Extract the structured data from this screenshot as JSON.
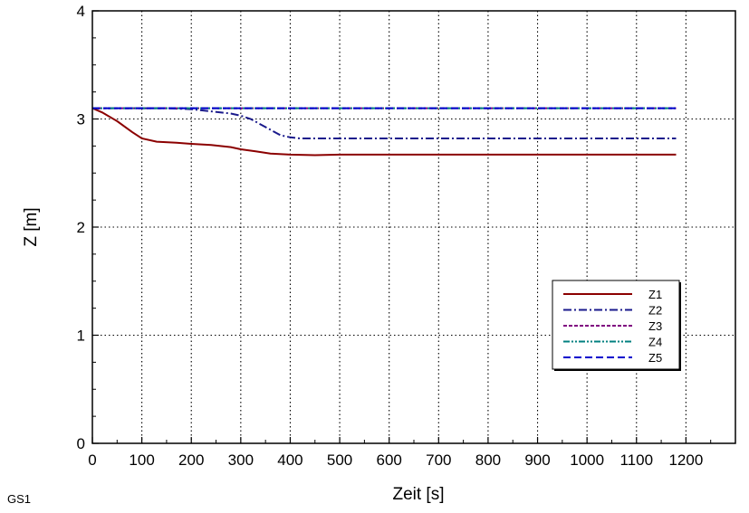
{
  "chart_data": {
    "type": "line",
    "title": "",
    "xlabel": "Zeit [s]",
    "ylabel": "Z [m]",
    "xlim": [
      0,
      1300
    ],
    "ylim": [
      0,
      4
    ],
    "xticks": [
      0,
      100,
      200,
      300,
      400,
      500,
      600,
      700,
      800,
      900,
      1000,
      1100,
      1200
    ],
    "yticks": [
      0,
      1,
      2,
      3,
      4
    ],
    "grid": true,
    "legend_position": "lower-right",
    "corner_label": "GS1",
    "series": [
      {
        "name": "Z1",
        "color": "#8b0000",
        "dash": "solid",
        "x": [
          0,
          20,
          50,
          80,
          100,
          130,
          170,
          200,
          240,
          280,
          300,
          330,
          360,
          400,
          450,
          500,
          600,
          800,
          1000,
          1180
        ],
        "y": [
          3.1,
          3.06,
          2.98,
          2.88,
          2.82,
          2.79,
          2.78,
          2.77,
          2.76,
          2.74,
          2.72,
          2.7,
          2.68,
          2.67,
          2.665,
          2.67,
          2.67,
          2.67,
          2.67,
          2.67
        ]
      },
      {
        "name": "Z2",
        "color": "#1a1a8c",
        "dash": "dashdot",
        "x": [
          0,
          100,
          150,
          200,
          240,
          280,
          300,
          320,
          340,
          360,
          380,
          400,
          420,
          500,
          600,
          800,
          1000,
          1180
        ],
        "y": [
          3.1,
          3.1,
          3.1,
          3.09,
          3.07,
          3.05,
          3.03,
          3.0,
          2.95,
          2.9,
          2.85,
          2.83,
          2.82,
          2.82,
          2.82,
          2.82,
          2.82,
          2.82
        ]
      },
      {
        "name": "Z3",
        "color": "#800080",
        "dash": "dashed-fine",
        "x": [
          0,
          1180
        ],
        "y": [
          3.1,
          3.1
        ]
      },
      {
        "name": "Z4",
        "color": "#008080",
        "dash": "dashdotdot",
        "x": [
          0,
          1180
        ],
        "y": [
          3.1,
          3.1
        ]
      },
      {
        "name": "Z5",
        "color": "#0000cc",
        "dash": "dashed",
        "x": [
          0,
          1180
        ],
        "y": [
          3.1,
          3.1
        ]
      }
    ]
  }
}
